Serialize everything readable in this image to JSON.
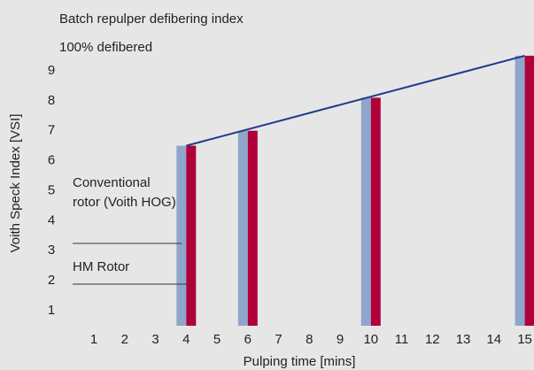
{
  "chart_data": {
    "type": "bar",
    "title": "Batch repulper defibering index",
    "annotation": "100% defibered",
    "x_label": "Pulping time [mins]",
    "y_label": "Voith Speck Index [VSI]",
    "x": [
      4,
      6,
      10,
      15
    ],
    "series": [
      {
        "name": "Conventional rotor (Voith HOG)",
        "color": "#8fa6cb",
        "values": [
          6.5,
          7.0,
          8.1,
          9.5
        ]
      },
      {
        "name": "HM Rotor",
        "color": "#b0003a",
        "values": [
          6.5,
          7.0,
          8.1,
          9.5
        ]
      }
    ],
    "trend": {
      "color": "#1e3a8a",
      "x": [
        4,
        15
      ],
      "values": [
        6.5,
        9.5
      ]
    },
    "xlim": [
      0,
      15.3
    ],
    "xticks": [
      1,
      2,
      3,
      4,
      5,
      6,
      7,
      8,
      9,
      10,
      11,
      12,
      13,
      14,
      15
    ],
    "ylim": [
      0.5,
      10
    ],
    "yticks": [
      1,
      2,
      3,
      4,
      5,
      6,
      7,
      8,
      9
    ]
  }
}
